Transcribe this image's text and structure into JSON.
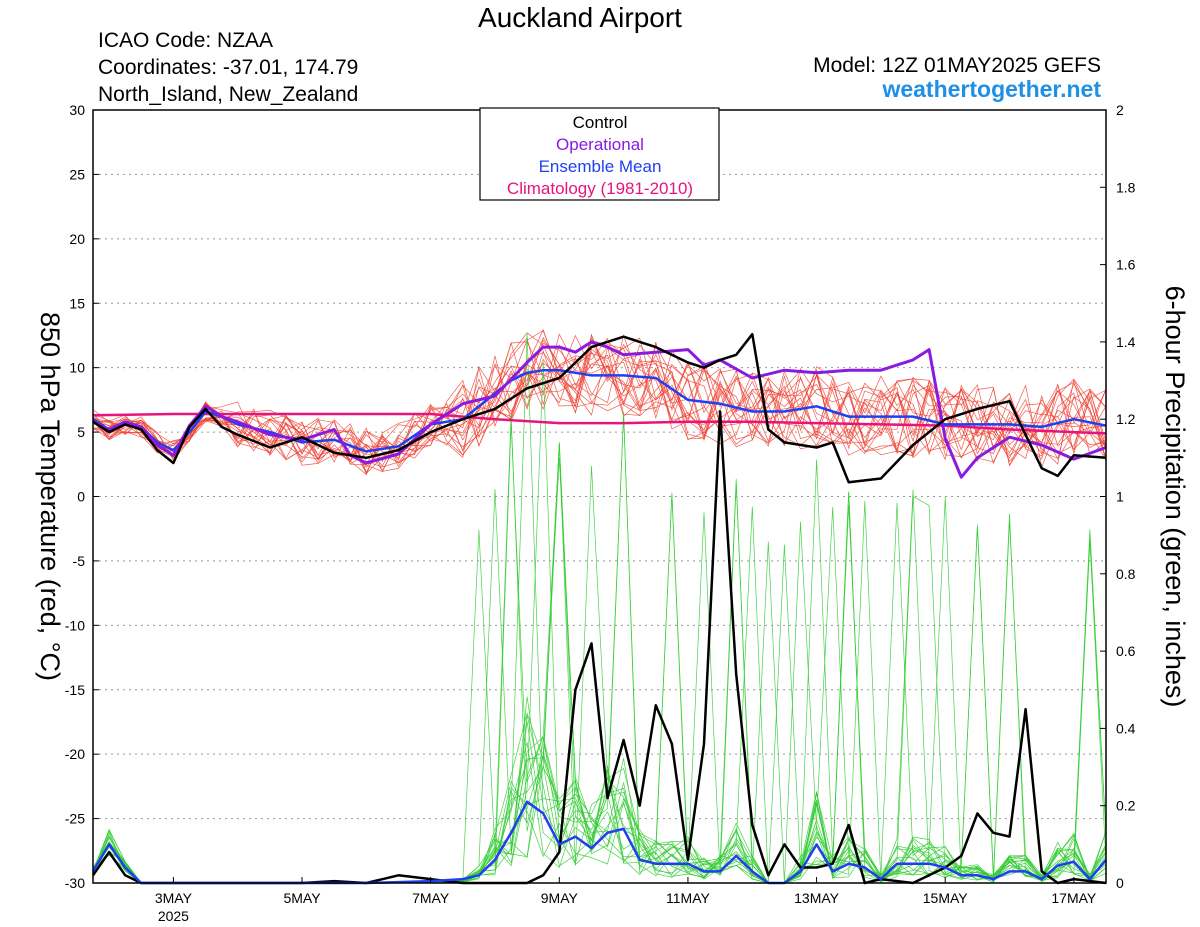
{
  "header": {
    "title": "Auckland Airport",
    "icao": "ICAO Code: NZAA",
    "coords": "Coordinates: -37.01, 174.79",
    "region": "North_Island, New_Zealand",
    "model": "Model: 12Z 01MAY2025 GEFS",
    "brand": "weathertogether.net"
  },
  "legend": {
    "control": "Control",
    "operational": "Operational",
    "ensemble_mean": "Ensemble Mean",
    "climatology": "Climatology (1981-2010)"
  },
  "colors": {
    "control": "#000000",
    "operational": "#8a1ae0",
    "ensemble_mean": "#2040f0",
    "climatology": "#e8137c",
    "temp_members": "#f04030",
    "precip_members": "#33cc33",
    "brand": "#1e90e6"
  },
  "chart_data": {
    "type": "line",
    "xlabel": "",
    "ylabel_left": "850 hPa Temperature (red, °C)",
    "ylabel_right": "6-hour Precipitation (green, inches)",
    "year_label": "2025",
    "x_range_days": [
      1.75,
      17.5
    ],
    "y_left_range": [
      -30,
      30
    ],
    "y_right_range": [
      0,
      2
    ],
    "y_left_ticks": [
      30,
      25,
      20,
      15,
      10,
      5,
      0,
      -5,
      -10,
      -15,
      -20,
      -25,
      -30
    ],
    "y_right_ticks": [
      2,
      1.8,
      1.6,
      1.4,
      1.2,
      1,
      0.8,
      0.6,
      0.4,
      0.2,
      0
    ],
    "x_ticks": [
      {
        "day": 3,
        "label": "3MAY"
      },
      {
        "day": 5,
        "label": "5MAY"
      },
      {
        "day": 7,
        "label": "7MAY"
      },
      {
        "day": 9,
        "label": "9MAY"
      },
      {
        "day": 11,
        "label": "11MAY"
      },
      {
        "day": 13,
        "label": "13MAY"
      },
      {
        "day": 15,
        "label": "15MAY"
      },
      {
        "day": 17,
        "label": "17MAY"
      }
    ],
    "series": [
      {
        "name": "Climatology (1981-2010)",
        "axis": "left",
        "key": "climatology",
        "x": [
          1.75,
          3,
          5,
          7,
          8,
          9,
          10,
          11,
          12,
          13,
          14,
          15,
          16,
          17,
          17.5
        ],
        "values": [
          6.3,
          6.4,
          6.4,
          6.4,
          6.0,
          5.7,
          5.7,
          5.8,
          5.8,
          5.7,
          5.6,
          5.5,
          5.2,
          5.0,
          4.9
        ]
      },
      {
        "name": "Ensemble Mean",
        "axis": "left",
        "key": "ensemble_mean",
        "x": [
          1.75,
          2,
          2.25,
          2.5,
          2.75,
          3,
          3.25,
          3.5,
          3.75,
          4,
          4.5,
          5,
          5.5,
          6,
          6.5,
          7,
          7.5,
          8,
          8.25,
          8.5,
          8.75,
          9,
          9.5,
          10,
          10.5,
          11,
          11.5,
          12,
          12.5,
          13,
          13.5,
          14,
          14.5,
          15,
          15.5,
          16,
          16.5,
          17,
          17.5
        ],
        "values": [
          6.0,
          5.2,
          5.6,
          5.4,
          4.2,
          3.6,
          5.0,
          6.6,
          6.2,
          5.6,
          5.0,
          4.2,
          4.4,
          3.5,
          3.9,
          5.6,
          6.0,
          8.0,
          9.0,
          9.6,
          9.8,
          9.8,
          9.4,
          9.4,
          9.2,
          7.5,
          7.2,
          6.6,
          6.6,
          7.0,
          6.2,
          6.2,
          6.2,
          5.6,
          5.6,
          5.6,
          5.4,
          6.0,
          5.5
        ]
      },
      {
        "name": "Operational",
        "axis": "left",
        "key": "operational",
        "x": [
          1.75,
          2,
          2.25,
          2.5,
          2.75,
          3,
          3.25,
          3.5,
          3.75,
          4,
          4.5,
          5,
          5.5,
          5.75,
          6,
          6.5,
          7,
          7.5,
          8,
          8.5,
          8.75,
          9,
          9.25,
          9.5,
          9.75,
          10,
          10.5,
          11,
          11.25,
          11.5,
          12,
          12.5,
          13,
          13.5,
          14,
          14.5,
          14.75,
          15,
          15.25,
          15.5,
          16,
          16.5,
          17,
          17.5
        ],
        "values": [
          5.8,
          5.2,
          5.8,
          5.4,
          4.0,
          3.2,
          5.5,
          7.0,
          6.2,
          5.8,
          4.8,
          4.4,
          5.2,
          3.2,
          2.6,
          3.3,
          5.6,
          7.2,
          7.8,
          10.4,
          11.6,
          11.6,
          11.2,
          12.0,
          11.6,
          11.0,
          11.2,
          11.4,
          10.2,
          10.6,
          9.2,
          9.8,
          9.6,
          9.8,
          9.8,
          10.6,
          11.4,
          4.5,
          1.5,
          3.0,
          4.6,
          4.0,
          2.9,
          3.8
        ]
      },
      {
        "name": "Control",
        "axis": "left",
        "key": "control",
        "x": [
          1.75,
          2,
          2.25,
          2.5,
          2.75,
          3,
          3.25,
          3.5,
          3.75,
          4,
          4.5,
          5,
          5.5,
          6,
          6.5,
          7,
          7.5,
          8,
          8.5,
          9,
          9.5,
          10,
          10.5,
          11,
          11.25,
          11.5,
          11.75,
          12,
          12.25,
          12.5,
          13,
          13.25,
          13.5,
          14,
          14.5,
          15,
          15.5,
          16,
          16.5,
          16.75,
          17,
          17.5
        ],
        "values": [
          5.8,
          5.0,
          5.6,
          5.2,
          3.6,
          2.6,
          5.4,
          6.8,
          5.4,
          4.8,
          3.8,
          4.6,
          3.4,
          3.0,
          3.6,
          5.0,
          6.0,
          6.8,
          8.4,
          9.2,
          11.6,
          12.4,
          11.6,
          10.4,
          10.0,
          10.6,
          11.0,
          12.6,
          5.2,
          4.2,
          3.8,
          4.2,
          1.1,
          1.4,
          4.0,
          6.0,
          6.8,
          7.4,
          2.2,
          1.6,
          3.2,
          3.0
        ]
      },
      {
        "name": "Control",
        "axis": "right",
        "key": "control_precip",
        "x": [
          1.75,
          2,
          2.25,
          2.5,
          3,
          4,
          5,
          5.5,
          6,
          6.5,
          7,
          7.5,
          8,
          8.5,
          8.75,
          9,
          9.25,
          9.5,
          9.75,
          10,
          10.25,
          10.5,
          10.75,
          11,
          11.25,
          11.5,
          11.75,
          12,
          12.25,
          12.5,
          12.75,
          13,
          13.25,
          13.5,
          13.75,
          14,
          14.5,
          14.75,
          15,
          15.25,
          15.5,
          15.75,
          16,
          16.25,
          16.5,
          16.75,
          17,
          17.5
        ],
        "values": [
          0.02,
          0.08,
          0.02,
          0.0,
          0.0,
          0.0,
          0.0,
          0.005,
          0.0,
          0.02,
          0.01,
          0.0,
          0.0,
          0.0,
          0.02,
          0.08,
          0.5,
          0.62,
          0.22,
          0.37,
          0.2,
          0.46,
          0.36,
          0.06,
          0.36,
          1.22,
          0.54,
          0.15,
          0.02,
          0.1,
          0.04,
          0.04,
          0.05,
          0.15,
          0.0,
          0.01,
          0.0,
          0.02,
          0.04,
          0.07,
          0.18,
          0.13,
          0.12,
          0.45,
          0.03,
          0.0,
          0.01,
          0.0
        ]
      },
      {
        "name": "Ensemble Mean",
        "axis": "right",
        "key": "ensemble_mean_precip",
        "x": [
          1.75,
          2,
          2.25,
          2.5,
          3,
          4,
          5,
          6,
          7,
          7.5,
          7.75,
          8,
          8.25,
          8.5,
          8.75,
          9,
          9.25,
          9.5,
          9.75,
          10,
          10.25,
          10.5,
          10.75,
          11,
          11.25,
          11.5,
          11.75,
          12,
          12.25,
          12.5,
          12.75,
          13,
          13.25,
          13.5,
          13.75,
          14,
          14.25,
          14.5,
          14.75,
          15,
          15.25,
          15.5,
          15.75,
          16,
          16.25,
          16.5,
          16.75,
          17,
          17.25,
          17.5
        ],
        "values": [
          0.03,
          0.1,
          0.04,
          0.0,
          0.0,
          0.0,
          0.0,
          0.0,
          0.005,
          0.01,
          0.02,
          0.06,
          0.13,
          0.21,
          0.18,
          0.1,
          0.12,
          0.09,
          0.13,
          0.14,
          0.06,
          0.05,
          0.05,
          0.05,
          0.03,
          0.03,
          0.07,
          0.03,
          0.0,
          0.0,
          0.03,
          0.1,
          0.03,
          0.05,
          0.04,
          0.01,
          0.05,
          0.05,
          0.05,
          0.04,
          0.02,
          0.02,
          0.01,
          0.03,
          0.03,
          0.01,
          0.045,
          0.055,
          0.01,
          0.06
        ]
      }
    ]
  }
}
